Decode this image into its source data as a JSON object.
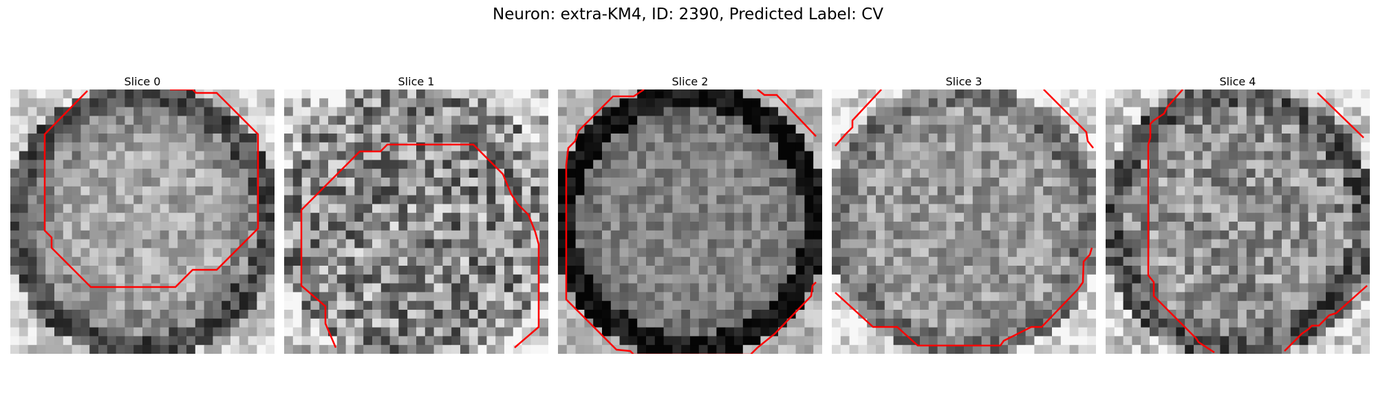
{
  "title": "Neuron: extra-KM4, ID: 2390, Predicted Label: CV",
  "outline_color": "#ff0000",
  "colormap": "grayscale",
  "slices": [
    {
      "label": "Slice 0"
    },
    {
      "label": "Slice 1"
    },
    {
      "label": "Slice 2"
    },
    {
      "label": "Slice 3"
    },
    {
      "label": "Slice 4"
    }
  ]
}
